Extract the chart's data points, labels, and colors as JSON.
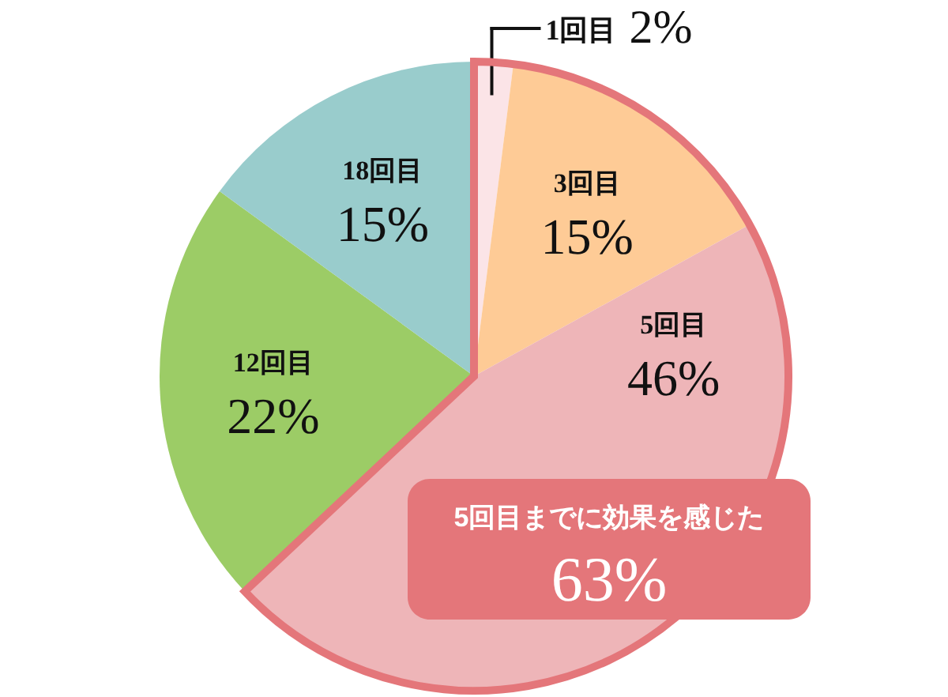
{
  "chart_data": {
    "type": "pie",
    "categories": [
      "1回目",
      "3回目",
      "5回目",
      "12回目",
      "18回目"
    ],
    "values": [
      2,
      15,
      46,
      22,
      15
    ],
    "colors": [
      "#fbe4e7",
      "#fecb96",
      "#eeb5b8",
      "#9ccc66",
      "#99cccc"
    ],
    "value_labels": [
      "2%",
      "15%",
      "46%",
      "22%",
      "15%"
    ],
    "annotations": [
      {
        "text": "5回目までに効果を感じた\n63%",
        "x": "5回目"
      }
    ]
  }
}
